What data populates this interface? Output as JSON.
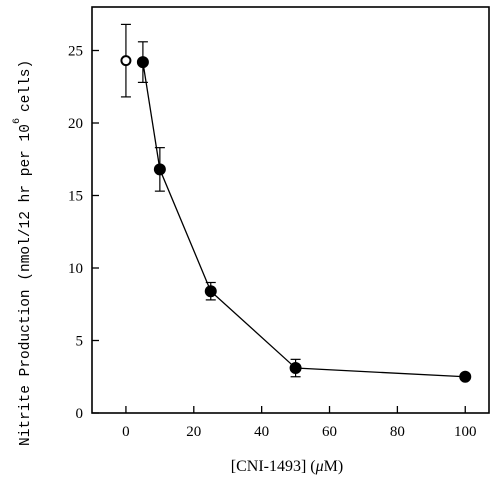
{
  "chart_data": {
    "type": "scatter",
    "xlabel_prefix": "[CNI-1493] (",
    "xlabel_mu": "μ",
    "xlabel_suffix": "M)",
    "ylabel_main": "Nitrite Production (nmol/12 hr per 10",
    "ylabel_exp": "6",
    "ylabel_tail": "cells)",
    "xlim": [
      -10,
      107
    ],
    "ylim": [
      0,
      28
    ],
    "xticks": [
      0,
      20,
      40,
      60,
      80,
      100
    ],
    "xtick_labels": [
      "0",
      "20",
      "40",
      "60",
      "80",
      "100"
    ],
    "yticks": [
      0,
      5,
      10,
      15,
      20,
      25
    ],
    "ytick_labels": [
      "0",
      "5",
      "10",
      "15",
      "20",
      "25"
    ],
    "grid": false,
    "series": [
      {
        "marker": "open-circle",
        "line": false,
        "x": [
          0
        ],
        "y": [
          24.3
        ],
        "err": [
          2.5
        ]
      },
      {
        "marker": "filled-circle",
        "line": true,
        "x": [
          5,
          10,
          25,
          50,
          100
        ],
        "y": [
          24.2,
          16.8,
          8.4,
          3.1,
          2.5
        ],
        "err": [
          1.4,
          1.5,
          0.6,
          0.6,
          0.1
        ]
      }
    ]
  }
}
